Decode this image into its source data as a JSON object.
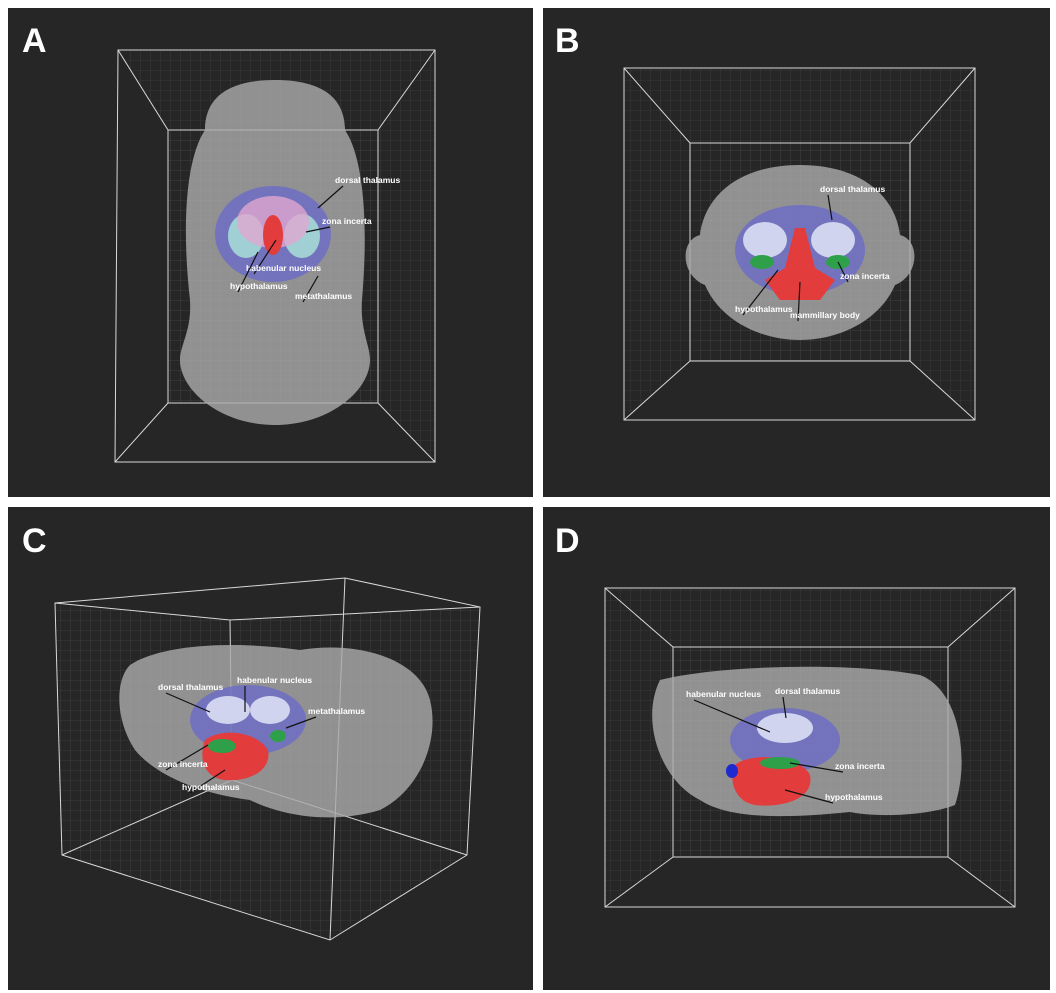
{
  "panels": [
    {
      "letter": "A",
      "labels": [
        "dorsal thalamus",
        "zona incerta",
        "habenular nucleus",
        "hypothalamus",
        "metathalamus"
      ]
    },
    {
      "letter": "B",
      "labels": [
        "dorsal thalamus",
        "zona incerta",
        "hypothalamus",
        "mammillary body"
      ]
    },
    {
      "letter": "C",
      "labels": [
        "dorsal thalamus",
        "habenular nucleus",
        "metathalamus",
        "zona incerta",
        "hypothalamus"
      ]
    },
    {
      "letter": "D",
      "labels": [
        "habenular nucleus",
        "dorsal thalamus",
        "zona incerta",
        "hypothalamus"
      ]
    }
  ]
}
